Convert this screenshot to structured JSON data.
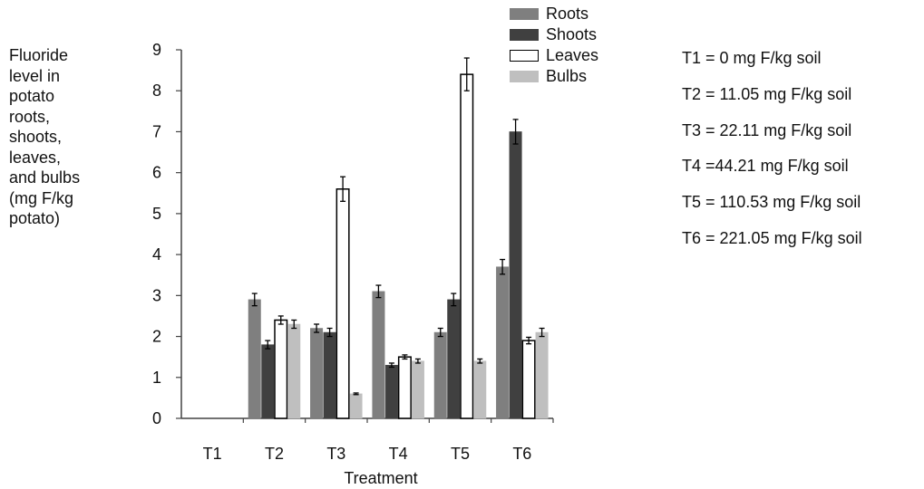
{
  "chart_data": {
    "type": "bar",
    "title": "",
    "ylabel_lines": [
      "Fluoride",
      "level in",
      "potato",
      "roots,",
      "shoots,",
      "leaves,",
      "and bulbs",
      "(mg F/kg",
      "potato)"
    ],
    "xlabel": "Treatment",
    "categories": [
      "T1",
      "T2",
      "T3",
      "T4",
      "T5",
      "T6"
    ],
    "ylim": [
      0,
      9
    ],
    "yticks": [
      0,
      1,
      2,
      3,
      4,
      5,
      6,
      7,
      8,
      9
    ],
    "grid": false,
    "legend_position": "top-center",
    "series": [
      {
        "name": "Roots",
        "color": "#7f7f7f",
        "fill": "#7f7f7f",
        "values": [
          0,
          2.9,
          2.2,
          3.1,
          2.1,
          3.7
        ],
        "errors": [
          0,
          0.15,
          0.1,
          0.15,
          0.1,
          0.18
        ]
      },
      {
        "name": "Shoots",
        "color": "#404040",
        "fill": "#404040",
        "values": [
          0,
          1.8,
          2.1,
          1.3,
          2.9,
          7.0
        ],
        "errors": [
          0,
          0.1,
          0.1,
          0.05,
          0.15,
          0.3
        ]
      },
      {
        "name": "Leaves",
        "color": "#000000",
        "fill": "#ffffff",
        "values": [
          0,
          2.4,
          5.6,
          1.5,
          8.4,
          1.9
        ],
        "errors": [
          0,
          0.1,
          0.3,
          0.05,
          0.4,
          0.08
        ]
      },
      {
        "name": "Bulbs",
        "color": "#bfbfbf",
        "fill": "#bfbfbf",
        "values": [
          0,
          2.3,
          0.6,
          1.4,
          1.4,
          2.1
        ],
        "errors": [
          0,
          0.1,
          0.02,
          0.05,
          0.05,
          0.1
        ]
      }
    ],
    "annotations": [
      "T1 = 0 mg F/kg soil",
      "T2 = 11.05 mg F/kg soil",
      "T3 = 22.11 mg F/kg soil",
      "T4 =44.21 mg F/kg soil",
      "T5 = 110.53 mg F/kg soil",
      "T6 = 221.05 mg F/kg soil"
    ]
  }
}
